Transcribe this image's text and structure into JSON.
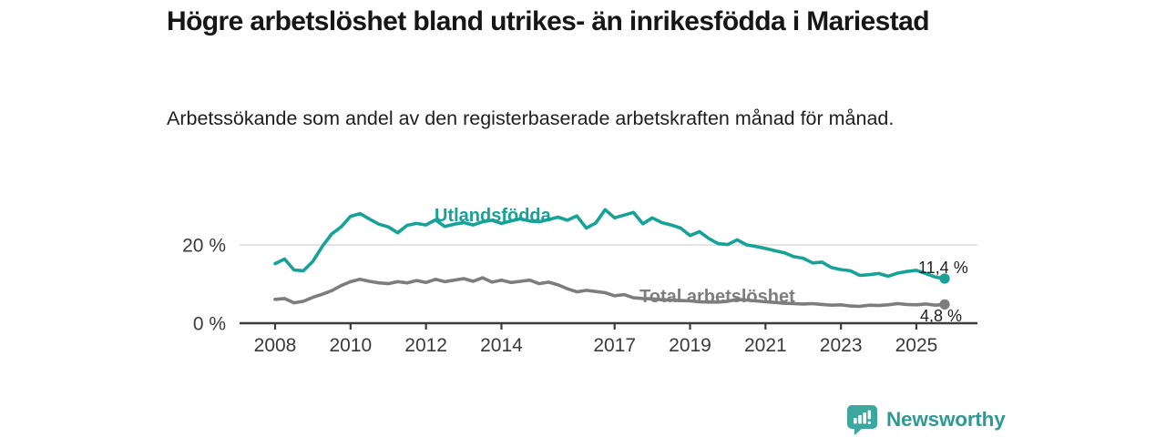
{
  "header": {
    "title": "Högre arbetslöshet bland utrikes- än inrikesfödda i Mariestad",
    "subtitle": "Arbetssökande som andel av den registerbaserade arbetskraften månad för månad."
  },
  "chart_data": {
    "type": "line",
    "title": "Högre arbetslöshet bland utrikes- än inrikesfödda i Mariestad",
    "subtitle": "Arbetssökande som andel av den registerbaserade arbetskraften månad för månad.",
    "unit": "%",
    "xlim": [
      2008,
      2025.75
    ],
    "ylim": [
      0,
      30
    ],
    "grid": "one horizontal gridline at 20 %",
    "legend_position": "inline labels on lines",
    "axis_color": "#3c3c3c",
    "grid_color": "#dcdcdc",
    "x_ticks": [
      {
        "v": 2008,
        "label": "2008"
      },
      {
        "v": 2010,
        "label": "2010"
      },
      {
        "v": 2012,
        "label": "2012"
      },
      {
        "v": 2014,
        "label": "2014"
      },
      {
        "v": 2017,
        "label": "2017"
      },
      {
        "v": 2019,
        "label": "2019"
      },
      {
        "v": 2021,
        "label": "2021"
      },
      {
        "v": 2023,
        "label": "2023"
      },
      {
        "v": 2025,
        "label": "2025"
      }
    ],
    "y_ticks": [
      {
        "v": 20,
        "label": "20 %",
        "gridline": true
      },
      {
        "v": 0,
        "label": "0 %",
        "gridline": false
      }
    ],
    "x": [
      2008,
      2008.25,
      2008.5,
      2008.75,
      2009,
      2009.25,
      2009.5,
      2009.75,
      2010,
      2010.25,
      2010.5,
      2010.75,
      2011,
      2011.25,
      2011.5,
      2011.75,
      2012,
      2012.25,
      2012.5,
      2012.75,
      2013,
      2013.25,
      2013.5,
      2013.75,
      2014,
      2014.25,
      2014.5,
      2014.75,
      2015,
      2015.25,
      2015.5,
      2015.75,
      2016,
      2016.25,
      2016.5,
      2016.75,
      2017,
      2017.25,
      2017.5,
      2017.75,
      2018,
      2018.25,
      2018.5,
      2018.75,
      2019,
      2019.25,
      2019.5,
      2019.75,
      2020,
      2020.25,
      2020.5,
      2020.75,
      2021,
      2021.25,
      2021.5,
      2021.75,
      2022,
      2022.25,
      2022.5,
      2022.75,
      2023,
      2023.25,
      2023.5,
      2023.75,
      2024,
      2024.25,
      2024.5,
      2024.75,
      2025,
      2025.25,
      2025.5,
      2025.75
    ],
    "series": [
      {
        "name": "Utlandsfödda",
        "color": "#16a296",
        "end_value": 11.4,
        "end_label": "11,4 %",
        "values": [
          15.2,
          16.4,
          13.6,
          13.4,
          15.8,
          19.6,
          22.8,
          24.6,
          27.3,
          28.0,
          26.6,
          25.3,
          24.6,
          23.1,
          25.0,
          25.5,
          25.1,
          26.4,
          24.7,
          25.3,
          25.7,
          25.1,
          25.9,
          26.3,
          25.5,
          26.1,
          26.7,
          26.1,
          25.9,
          26.5,
          27.1,
          26.3,
          27.4,
          24.3,
          25.6,
          29.0,
          26.9,
          27.6,
          28.3,
          25.4,
          26.9,
          25.7,
          25.1,
          24.3,
          22.4,
          23.4,
          21.6,
          20.3,
          20.1,
          21.3,
          20.0,
          19.6,
          19.1,
          18.5,
          18.0,
          17.0,
          16.6,
          15.4,
          15.6,
          14.2,
          13.7,
          13.4,
          12.2,
          12.4,
          12.7,
          12.0,
          12.8,
          13.2,
          13.5,
          12.7,
          11.8,
          11.4
        ]
      },
      {
        "name": "Total arbetslöshet",
        "color": "#7d7d7d",
        "end_value": 4.8,
        "end_label": "4,8 %",
        "values": [
          6.1,
          6.3,
          5.2,
          5.6,
          6.6,
          7.4,
          8.3,
          9.6,
          10.6,
          11.2,
          10.7,
          10.3,
          10.1,
          10.6,
          10.3,
          10.9,
          10.4,
          11.2,
          10.6,
          11.0,
          11.4,
          10.7,
          11.6,
          10.5,
          11.0,
          10.4,
          10.7,
          11.0,
          10.1,
          10.5,
          9.8,
          8.8,
          8.0,
          8.4,
          8.1,
          7.8,
          7.0,
          7.3,
          6.5,
          6.3,
          6.2,
          6.0,
          5.9,
          5.8,
          5.7,
          5.5,
          5.4,
          5.4,
          5.6,
          6.1,
          5.9,
          5.7,
          5.5,
          5.3,
          5.1,
          5.0,
          4.9,
          5.0,
          4.8,
          4.6,
          4.7,
          4.4,
          4.3,
          4.6,
          4.5,
          4.7,
          5.0,
          4.8,
          4.7,
          4.9,
          4.6,
          4.8
        ]
      }
    ]
  },
  "footer": {
    "brand": "Newsworthy",
    "logo_icon": "newsworthy-chart-bubble-icon",
    "brand_color": "#2f9a94",
    "icon_color": "#3ba79f"
  }
}
